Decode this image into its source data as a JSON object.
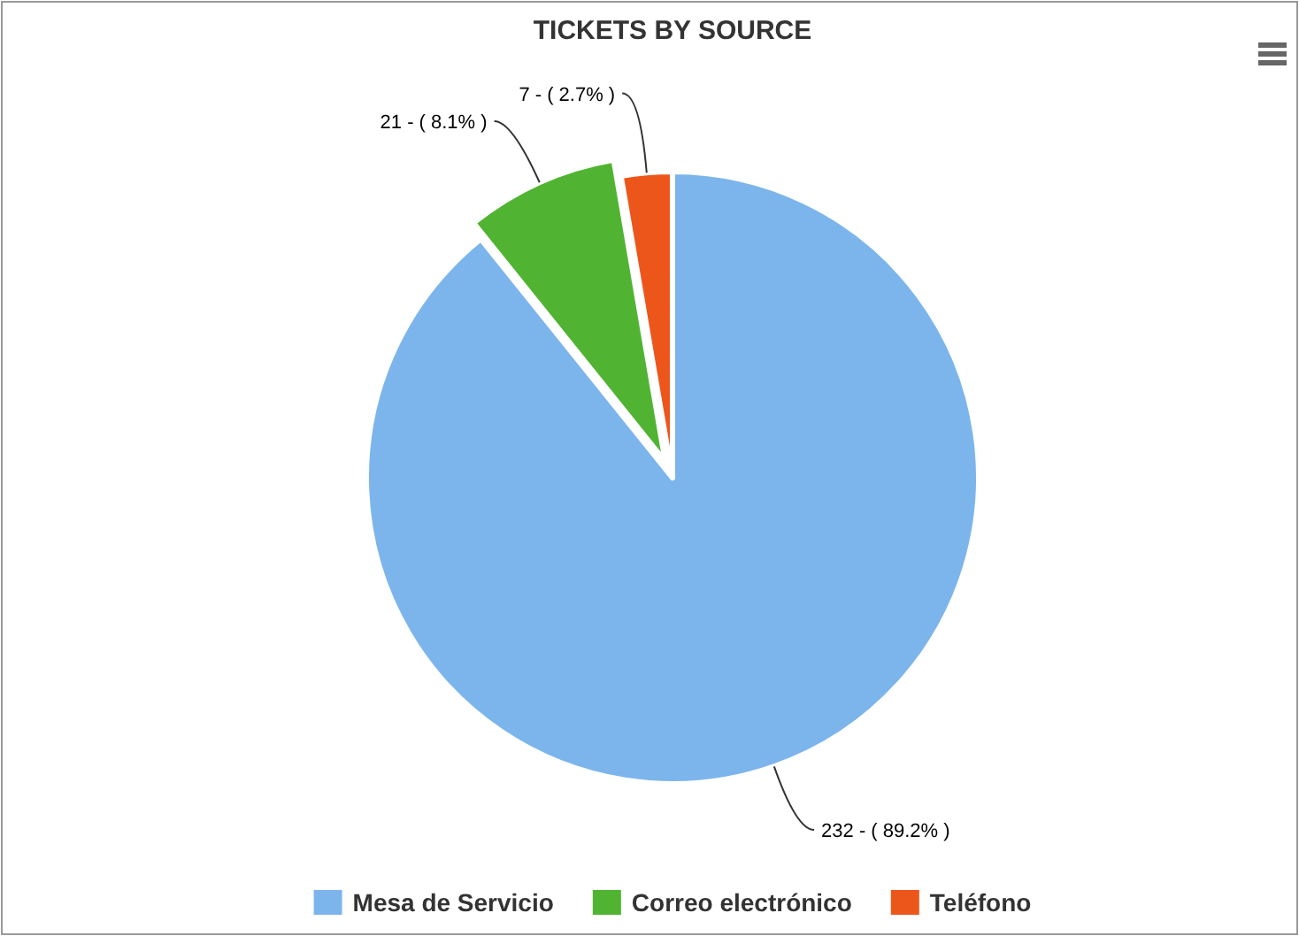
{
  "chart_data": {
    "type": "pie",
    "title": "TICKETS BY SOURCE",
    "categories": [
      "Mesa de Servicio",
      "Correo electrónico",
      "Teléfono"
    ],
    "values": [
      232,
      21,
      7
    ],
    "colors": [
      "#7cb5ec",
      "#50b432",
      "#ed561b"
    ],
    "value_labels": [
      "232 - ( 89.2% )",
      "21 - ( 8.1% )",
      "7 - ( 2.7% )"
    ],
    "legend": "bottom"
  }
}
